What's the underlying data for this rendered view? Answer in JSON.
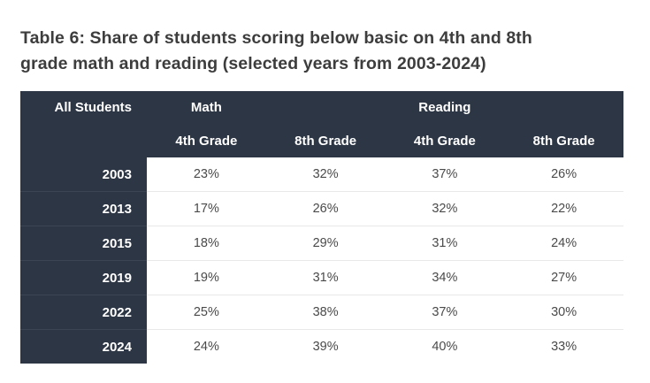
{
  "page": {
    "background": "#ffffff",
    "title_lines": [
      "Table 6: Share of students scoring below basic on 4th and 8th",
      "grade math and reading (selected years from 2003-2024)"
    ]
  },
  "colors": {
    "header_bg": "#2c3645",
    "header_text": "#ffffff",
    "title_text": "#3d3d3d",
    "value_text": "#4a4a4a",
    "row_divider": "#e8e8e8",
    "dark_row_divider": "#3c4554"
  },
  "table": {
    "corner_label": "All Students",
    "groups": [
      {
        "label": "Math"
      },
      {
        "label": "Reading"
      }
    ],
    "sub_headers": [
      "4th Grade",
      "8th Grade",
      "4th Grade",
      "8th Grade"
    ],
    "rows": [
      {
        "year": "2003",
        "values": [
          "23%",
          "32%",
          "37%",
          "26%"
        ]
      },
      {
        "year": "2013",
        "values": [
          "17%",
          "26%",
          "32%",
          "22%"
        ]
      },
      {
        "year": "2015",
        "values": [
          "18%",
          "29%",
          "31%",
          "24%"
        ]
      },
      {
        "year": "2019",
        "values": [
          "19%",
          "31%",
          "34%",
          "27%"
        ]
      },
      {
        "year": "2022",
        "values": [
          "25%",
          "38%",
          "37%",
          "30%"
        ]
      },
      {
        "year": "2024",
        "values": [
          "24%",
          "39%",
          "40%",
          "33%"
        ]
      }
    ]
  },
  "chart_data": {
    "type": "table",
    "title": "Table 6: Share of students scoring below basic on 4th and 8th grade math and reading (selected years from 2003-2024)",
    "column_groups": [
      "Math",
      "Reading"
    ],
    "columns": [
      "All Students",
      "Math 4th Grade",
      "Math 8th Grade",
      "Reading 4th Grade",
      "Reading 8th Grade"
    ],
    "rows": [
      [
        "2003",
        "23%",
        "32%",
        "37%",
        "26%"
      ],
      [
        "2013",
        "17%",
        "26%",
        "32%",
        "22%"
      ],
      [
        "2015",
        "18%",
        "29%",
        "31%",
        "24%"
      ],
      [
        "2019",
        "19%",
        "31%",
        "34%",
        "27%"
      ],
      [
        "2022",
        "25%",
        "38%",
        "37%",
        "30%"
      ],
      [
        "2024",
        "24%",
        "39%",
        "40%",
        "33%"
      ]
    ]
  }
}
